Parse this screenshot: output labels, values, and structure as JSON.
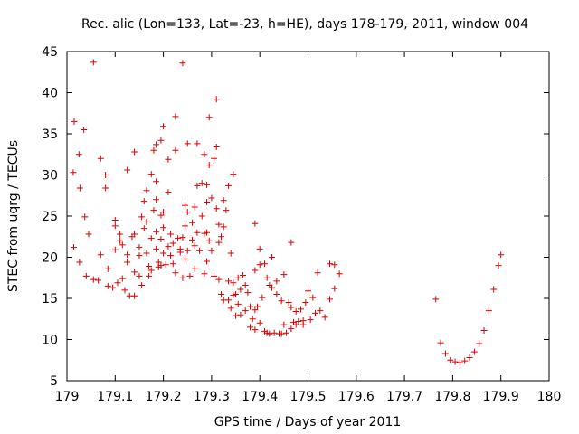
{
  "chart_data": {
    "type": "scatter",
    "title": "Rec. alic (Lon=133, Lat=-23, h=HE), days 178-179, 2011, window 004",
    "xlabel": "GPS time / Days of year 2011",
    "ylabel": "STEC from uqrg / TECUs",
    "xlim": [
      179,
      180
    ],
    "ylim": [
      5,
      45
    ],
    "x_ticks": [
      179,
      179.1,
      179.2,
      179.3,
      179.4,
      179.5,
      179.6,
      179.7,
      179.8,
      179.9,
      180
    ],
    "x_tick_labels": [
      "179",
      "179.1",
      "179.2",
      "179.3",
      "179.4",
      "179.5",
      "179.6",
      "179.7",
      "179.8",
      "179.9",
      "180"
    ],
    "y_ticks": [
      5,
      10,
      15,
      20,
      25,
      30,
      35,
      40,
      45
    ],
    "y_tick_labels": [
      "5",
      "10",
      "15",
      "20",
      "25",
      "30",
      "35",
      "40",
      "45"
    ],
    "grid": false,
    "marker": "plus",
    "color": "#dd0000",
    "series": [
      {
        "points": [
          [
            179.015,
            36.5
          ],
          [
            179.013,
            30.3
          ],
          [
            179.014,
            21.2
          ],
          [
            179.025,
            32.5
          ],
          [
            179.027,
            28.4
          ],
          [
            179.026,
            19.4
          ],
          [
            179.035,
            35.5
          ],
          [
            179.037,
            24.9
          ],
          [
            179.04,
            17.7
          ],
          [
            179.045,
            22.8
          ],
          [
            179.055,
            43.7
          ],
          [
            179.055,
            17.3
          ],
          [
            179.065,
            17.2
          ],
          [
            179.07,
            32.0
          ],
          [
            179.07,
            20.3
          ],
          [
            179.08,
            30.0
          ],
          [
            179.08,
            28.4
          ],
          [
            179.085,
            18.6
          ],
          [
            179.085,
            16.5
          ],
          [
            179.095,
            16.3
          ],
          [
            179.1,
            24.5
          ],
          [
            179.1,
            23.8
          ],
          [
            179.1,
            20.9
          ],
          [
            179.105,
            16.9
          ],
          [
            179.11,
            22.8
          ],
          [
            179.11,
            22.0
          ],
          [
            179.115,
            21.5
          ],
          [
            179.115,
            17.4
          ],
          [
            179.12,
            16.0
          ],
          [
            179.125,
            30.6
          ],
          [
            179.125,
            20.3
          ],
          [
            179.125,
            19.4
          ],
          [
            179.13,
            15.3
          ],
          [
            179.135,
            22.5
          ],
          [
            179.14,
            32.8
          ],
          [
            179.14,
            22.8
          ],
          [
            179.14,
            18.2
          ],
          [
            179.14,
            15.3
          ],
          [
            179.15,
            21.2
          ],
          [
            179.15,
            20.2
          ],
          [
            179.15,
            17.7
          ],
          [
            179.155,
            24.9
          ],
          [
            179.155,
            16.6
          ],
          [
            179.16,
            26.8
          ],
          [
            179.16,
            23.5
          ],
          [
            179.165,
            28.1
          ],
          [
            179.165,
            24.3
          ],
          [
            179.165,
            20.5
          ],
          [
            179.17,
            18.9
          ],
          [
            179.17,
            17.7
          ],
          [
            179.175,
            30.1
          ],
          [
            179.175,
            22.3
          ],
          [
            179.175,
            18.4
          ],
          [
            179.18,
            33.0
          ],
          [
            179.18,
            25.7
          ],
          [
            179.185,
            33.7
          ],
          [
            179.185,
            29.2
          ],
          [
            179.185,
            27.0
          ],
          [
            179.185,
            23.1
          ],
          [
            179.185,
            21.0
          ],
          [
            179.19,
            19.4
          ],
          [
            179.19,
            18.8
          ],
          [
            179.195,
            34.2
          ],
          [
            179.195,
            25.1
          ],
          [
            179.195,
            22.2
          ],
          [
            179.195,
            19.0
          ],
          [
            179.2,
            35.9
          ],
          [
            179.2,
            25.5
          ],
          [
            179.2,
            23.6
          ],
          [
            179.2,
            20.5
          ],
          [
            179.205,
            19.1
          ],
          [
            179.21,
            31.9
          ],
          [
            179.21,
            27.9
          ],
          [
            179.21,
            21.3
          ],
          [
            179.215,
            22.8
          ],
          [
            179.215,
            20.2
          ],
          [
            179.22,
            21.7
          ],
          [
            179.22,
            19.2
          ],
          [
            179.225,
            37.1
          ],
          [
            179.225,
            33.0
          ],
          [
            179.225,
            18.1
          ],
          [
            179.23,
            22.3
          ],
          [
            179.235,
            21.0
          ],
          [
            179.235,
            20.6
          ],
          [
            179.24,
            43.6
          ],
          [
            179.24,
            22.4
          ],
          [
            179.24,
            17.5
          ],
          [
            179.245,
            26.3
          ],
          [
            179.245,
            23.8
          ],
          [
            179.245,
            19.8
          ],
          [
            179.25,
            33.8
          ],
          [
            179.25,
            25.5
          ],
          [
            179.25,
            20.8
          ],
          [
            179.255,
            17.7
          ],
          [
            179.26,
            24.2
          ],
          [
            179.26,
            22.1
          ],
          [
            179.265,
            26.1
          ],
          [
            179.265,
            21.4
          ],
          [
            179.265,
            18.6
          ],
          [
            179.27,
            33.8
          ],
          [
            179.27,
            28.7
          ],
          [
            179.27,
            23.0
          ],
          [
            179.275,
            20.8
          ],
          [
            179.28,
            29.0
          ],
          [
            179.28,
            25.0
          ],
          [
            179.285,
            32.5
          ],
          [
            179.285,
            22.9
          ],
          [
            179.285,
            18.0
          ],
          [
            179.29,
            28.8
          ],
          [
            179.29,
            26.7
          ],
          [
            179.29,
            23.0
          ],
          [
            179.29,
            19.5
          ],
          [
            179.295,
            37.0
          ],
          [
            179.295,
            31.2
          ],
          [
            179.295,
            22.0
          ],
          [
            179.3,
            27.2
          ],
          [
            179.3,
            20.8
          ],
          [
            179.305,
            32.0
          ],
          [
            179.305,
            17.7
          ],
          [
            179.31,
            39.2
          ],
          [
            179.31,
            33.4
          ],
          [
            179.31,
            25.9
          ],
          [
            179.315,
            24.0
          ],
          [
            179.315,
            21.8
          ],
          [
            179.315,
            17.3
          ],
          [
            179.32,
            22.5
          ],
          [
            179.32,
            15.5
          ],
          [
            179.325,
            26.9
          ],
          [
            179.325,
            23.7
          ],
          [
            179.325,
            14.8
          ],
          [
            179.33,
            25.7
          ],
          [
            179.335,
            28.7
          ],
          [
            179.335,
            17.1
          ],
          [
            179.335,
            14.8
          ],
          [
            179.34,
            20.5
          ],
          [
            179.34,
            13.8
          ],
          [
            179.345,
            30.1
          ],
          [
            179.345,
            16.9
          ],
          [
            179.345,
            15.4
          ],
          [
            179.35,
            15.5
          ],
          [
            179.35,
            12.9
          ],
          [
            179.355,
            17.5
          ],
          [
            179.355,
            14.3
          ],
          [
            179.36,
            16.1
          ],
          [
            179.36,
            13.0
          ],
          [
            179.365,
            17.8
          ],
          [
            179.37,
            16.6
          ],
          [
            179.37,
            13.5
          ],
          [
            179.375,
            15.7
          ],
          [
            179.38,
            14.0
          ],
          [
            179.38,
            11.5
          ],
          [
            179.385,
            12.5
          ],
          [
            179.39,
            24.1
          ],
          [
            179.39,
            18.4
          ],
          [
            179.39,
            13.6
          ],
          [
            179.39,
            11.2
          ],
          [
            179.395,
            14.0
          ],
          [
            179.4,
            21.0
          ],
          [
            179.4,
            19.1
          ],
          [
            179.4,
            12.0
          ],
          [
            179.405,
            15.1
          ],
          [
            179.41,
            19.2
          ],
          [
            179.41,
            11.0
          ],
          [
            179.415,
            17.5
          ],
          [
            179.415,
            10.8
          ],
          [
            179.42,
            16.6
          ],
          [
            179.42,
            10.7
          ],
          [
            179.425,
            20.0
          ],
          [
            179.425,
            16.3
          ],
          [
            179.43,
            10.8
          ],
          [
            179.435,
            17.1
          ],
          [
            179.435,
            15.5
          ],
          [
            179.44,
            10.7
          ],
          [
            179.445,
            14.7
          ],
          [
            179.445,
            10.7
          ],
          [
            179.45,
            17.9
          ],
          [
            179.45,
            11.8
          ],
          [
            179.455,
            10.8
          ],
          [
            179.46,
            14.5
          ],
          [
            179.465,
            21.8
          ],
          [
            179.465,
            13.9
          ],
          [
            179.465,
            11.3
          ],
          [
            179.47,
            12.1
          ],
          [
            179.475,
            13.4
          ],
          [
            179.475,
            11.8
          ],
          [
            179.48,
            12.2
          ],
          [
            179.485,
            13.7
          ],
          [
            179.49,
            12.3
          ],
          [
            179.49,
            11.8
          ],
          [
            179.495,
            14.5
          ],
          [
            179.5,
            15.9
          ],
          [
            179.505,
            12.4
          ],
          [
            179.51,
            15.1
          ],
          [
            179.515,
            13.2
          ],
          [
            179.52,
            18.1
          ],
          [
            179.525,
            13.5
          ],
          [
            179.535,
            12.7
          ],
          [
            179.545,
            19.2
          ],
          [
            179.545,
            14.9
          ],
          [
            179.555,
            19.1
          ],
          [
            179.555,
            16.2
          ],
          [
            179.565,
            18.0
          ],
          [
            179.765,
            14.9
          ],
          [
            179.775,
            9.6
          ],
          [
            179.785,
            8.3
          ],
          [
            179.795,
            7.5
          ],
          [
            179.805,
            7.3
          ],
          [
            179.815,
            7.2
          ],
          [
            179.825,
            7.4
          ],
          [
            179.835,
            7.8
          ],
          [
            179.845,
            8.5
          ],
          [
            179.855,
            9.5
          ],
          [
            179.865,
            11.1
          ],
          [
            179.875,
            13.5
          ],
          [
            179.885,
            16.1
          ],
          [
            179.895,
            19.0
          ],
          [
            179.9,
            20.3
          ]
        ]
      }
    ]
  }
}
